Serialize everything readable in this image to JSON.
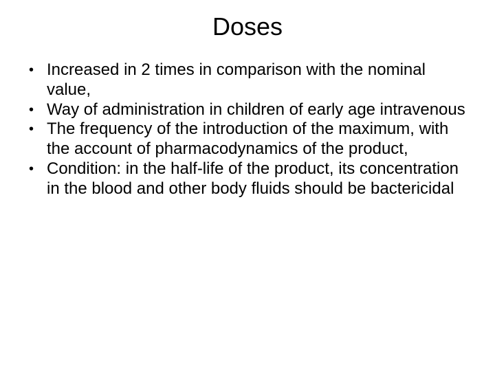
{
  "slide": {
    "title": "Doses",
    "bullets": [
      "Increased in 2 times in comparison with the nominal value,",
      "Way of administration in children of early age intravenous",
      "The frequency of the introduction of the maximum, with the account of pharmacodynamics of the product,",
      "Condition: in the half-life of the product, its concentration in the blood and other body fluids should be bactericidal"
    ],
    "background_color": "#ffffff",
    "text_color": "#000000",
    "title_fontsize": 36,
    "body_fontsize": 24
  }
}
